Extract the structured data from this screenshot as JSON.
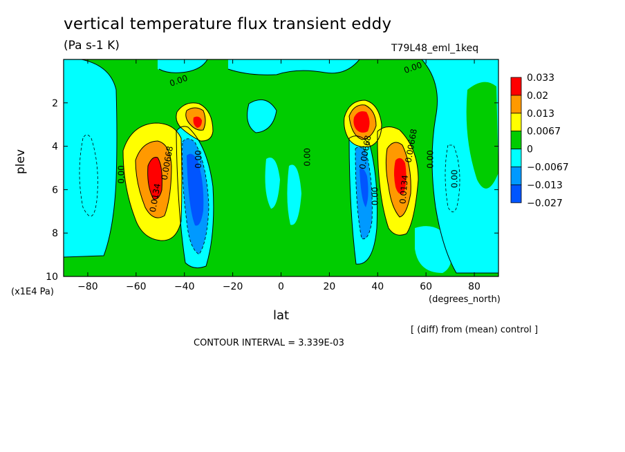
{
  "chart_data": {
    "type": "heatmap",
    "title": "vertical temperature flux transient eddy",
    "units": "(Pa s-1 K)",
    "run_label": "T79L48_eml_1keq",
    "xlabel": "lat",
    "x_unit": "(degrees_north)",
    "ylabel": "plev",
    "y_unit": "(x1E4 Pa)",
    "xlim": [
      -90,
      90
    ],
    "ylim": [
      0,
      10
    ],
    "y_inverted": true,
    "x_ticks": [
      -80,
      -60,
      -40,
      -20,
      0,
      20,
      40,
      60,
      80
    ],
    "y_ticks": [
      2,
      4,
      6,
      8,
      10
    ],
    "colorbar": {
      "levels": [
        "0.033",
        "0.02",
        "0.013",
        "0.0067",
        "0",
        "-0.0067",
        "-0.013",
        "-0.027"
      ],
      "colors": [
        "#ff0000",
        "#ff9900",
        "#ffff00",
        "#00cc00",
        "#00ffff",
        "#0099ff",
        "#0055ff"
      ]
    },
    "contour_labels": [
      "0.00",
      "0.00",
      "0.00668",
      "0.0134",
      "0.00",
      "0.00",
      "0.00",
      "0.00668",
      "0.0134",
      "0.00",
      "0.00",
      "0.00668",
      "0.00"
    ],
    "features": [
      {
        "lat": -54,
        "plev": 5.3,
        "value": 0.033
      },
      {
        "lat": -35,
        "plev": 5.8,
        "value": -0.027
      },
      {
        "lat": -38,
        "plev": 3.0,
        "value": 0.02
      },
      {
        "lat": 32,
        "plev": 3.0,
        "value": 0.033
      },
      {
        "lat": 37,
        "plev": 5.8,
        "value": -0.02
      },
      {
        "lat": 49,
        "plev": 5.3,
        "value": 0.033
      }
    ],
    "annotation": "[ (diff) from (mean) control ]",
    "contour_interval": "CONTOUR INTERVAL = 3.339E-03"
  }
}
